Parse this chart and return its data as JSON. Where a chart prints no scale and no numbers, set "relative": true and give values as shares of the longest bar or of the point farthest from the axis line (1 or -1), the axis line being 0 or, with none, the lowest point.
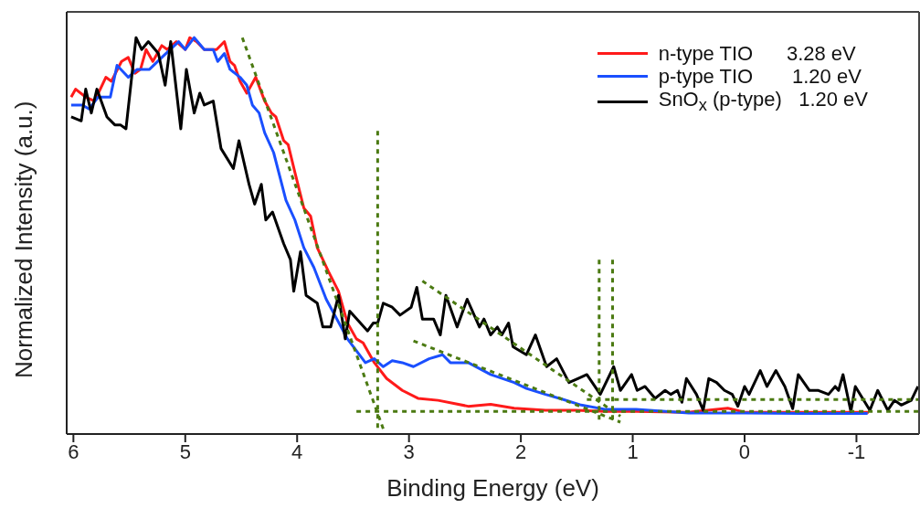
{
  "chart_data": {
    "type": "line",
    "xlabel": "Binding Energy (eV)",
    "ylabel": "Normalized Intensity (a.u.)",
    "relative": true,
    "xlim": [
      6.06,
      -1.56
    ],
    "xticks": [
      6,
      5,
      4,
      3,
      2,
      1,
      0,
      -1
    ],
    "legend": "top right",
    "marker": "none",
    "line_style": "solid",
    "series": [
      {
        "name": "n-type TIO      3.28 eV",
        "color": "#ff1a1a",
        "x": [
          6.02,
          5.98,
          5.89,
          5.81,
          5.71,
          5.66,
          5.57,
          5.51,
          5.45,
          5.4,
          5.35,
          5.29,
          5.21,
          5.16,
          5.08,
          5.0,
          4.96,
          4.9,
          4.83,
          4.72,
          4.65,
          4.6,
          4.56,
          4.51,
          4.45,
          4.37,
          4.29,
          4.23,
          4.19,
          4.12,
          4.08,
          4.02,
          3.94,
          3.88,
          3.82,
          3.72,
          3.63,
          3.55,
          3.47,
          3.41,
          3.31,
          3.2,
          3.06,
          2.92,
          2.74,
          2.47,
          2.27,
          2.06,
          1.78,
          1.51,
          1.24,
          0.97,
          0.5,
          0.15,
          0,
          -0.5,
          -1.11
        ],
        "values": [
          0.85,
          0.87,
          0.85,
          0.84,
          0.9,
          0.89,
          0.94,
          0.95,
          0.91,
          0.92,
          0.97,
          0.94,
          0.98,
          0.97,
          0.99,
          0.97,
          1.0,
          0.99,
          0.97,
          0.97,
          0.99,
          0.94,
          0.93,
          0.89,
          0.86,
          0.9,
          0.84,
          0.81,
          0.8,
          0.74,
          0.73,
          0.66,
          0.57,
          0.55,
          0.47,
          0.41,
          0.36,
          0.28,
          0.24,
          0.23,
          0.18,
          0.14,
          0.11,
          0.09,
          0.085,
          0.07,
          0.075,
          0.065,
          0.06,
          0.06,
          0.057,
          0.057,
          0.055,
          0.065,
          0.055,
          0.055,
          0.055
        ]
      },
      {
        "name": "p-type TIO       1.20 eV",
        "color": "#1a4fff",
        "x": [
          6.02,
          5.92,
          5.86,
          5.78,
          5.67,
          5.61,
          5.51,
          5.43,
          5.32,
          5.21,
          5.06,
          5.0,
          4.92,
          4.83,
          4.75,
          4.71,
          4.65,
          4.6,
          4.51,
          4.45,
          4.4,
          4.34,
          4.29,
          4.21,
          4.1,
          4.02,
          3.94,
          3.85,
          3.74,
          3.55,
          3.39,
          3.31,
          3.23,
          3.15,
          3.06,
          2.96,
          2.82,
          2.7,
          2.63,
          2.47,
          2.27,
          2.06,
          1.95,
          1.78,
          1.62,
          1.46,
          1.24,
          0.97,
          0.5,
          0,
          -0.5,
          -1.1
        ],
        "values": [
          0.83,
          0.83,
          0.82,
          0.85,
          0.85,
          0.93,
          0.9,
          0.92,
          0.92,
          0.95,
          0.99,
          0.97,
          1.0,
          0.97,
          0.97,
          0.94,
          0.96,
          0.92,
          0.9,
          0.88,
          0.83,
          0.81,
          0.76,
          0.71,
          0.59,
          0.54,
          0.47,
          0.42,
          0.34,
          0.24,
          0.18,
          0.19,
          0.17,
          0.185,
          0.18,
          0.17,
          0.19,
          0.2,
          0.18,
          0.18,
          0.15,
          0.13,
          0.115,
          0.1,
          0.087,
          0.073,
          0.062,
          0.062,
          0.053,
          0.053,
          0.052,
          0.052
        ]
      },
      {
        "name": "SnO$_{x}$ (p-type)   1.20 eV",
        "color": "#000000",
        "x": [
          6.02,
          5.93,
          5.89,
          5.84,
          5.79,
          5.7,
          5.63,
          5.58,
          5.53,
          5.44,
          5.39,
          5.33,
          5.24,
          5.18,
          5.13,
          5.04,
          4.99,
          4.92,
          4.87,
          4.83,
          4.75,
          4.68,
          4.57,
          4.52,
          4.43,
          4.38,
          4.32,
          4.28,
          4.22,
          4.12,
          4.06,
          4.03,
          3.97,
          3.92,
          3.82,
          3.77,
          3.7,
          3.63,
          3.57,
          3.53,
          3.37,
          3.32,
          3.28,
          3.23,
          3.15,
          3.08,
          2.98,
          2.93,
          2.88,
          2.78,
          2.72,
          2.67,
          2.57,
          2.48,
          2.37,
          2.33,
          2.27,
          2.21,
          2.17,
          2.11,
          2.07,
          1.95,
          1.87,
          1.77,
          1.68,
          1.57,
          1.49,
          1.41,
          1.29,
          1.17,
          1.11,
          1.01,
          0.96,
          0.89,
          0.8,
          0.71,
          0.66,
          0.6,
          0.56,
          0.52,
          0.43,
          0.37,
          0.32,
          0.25,
          0.18,
          0.11,
          0.06,
          0.0,
          -0.04,
          -0.14,
          -0.2,
          -0.28,
          -0.36,
          -0.43,
          -0.48,
          -0.58,
          -0.66,
          -0.75,
          -0.81,
          -0.84,
          -0.88,
          -0.95,
          -0.99,
          -1.12,
          -1.19,
          -1.28,
          -1.34,
          -1.4,
          -1.49,
          -1.55
        ],
        "values": [
          0.8,
          0.79,
          0.87,
          0.81,
          0.87,
          0.8,
          0.78,
          0.78,
          0.77,
          1.0,
          0.97,
          0.99,
          0.96,
          0.88,
          0.99,
          0.77,
          0.92,
          0.81,
          0.86,
          0.83,
          0.84,
          0.72,
          0.67,
          0.74,
          0.63,
          0.58,
          0.63,
          0.54,
          0.56,
          0.48,
          0.44,
          0.36,
          0.46,
          0.35,
          0.33,
          0.27,
          0.27,
          0.35,
          0.24,
          0.31,
          0.26,
          0.28,
          0.28,
          0.33,
          0.32,
          0.3,
          0.32,
          0.37,
          0.29,
          0.29,
          0.25,
          0.35,
          0.27,
          0.34,
          0.27,
          0.29,
          0.25,
          0.27,
          0.25,
          0.28,
          0.22,
          0.2,
          0.25,
          0.17,
          0.19,
          0.13,
          0.14,
          0.15,
          0.1,
          0.17,
          0.11,
          0.15,
          0.11,
          0.12,
          0.09,
          0.11,
          0.1,
          0.11,
          0.08,
          0.14,
          0.1,
          0.06,
          0.14,
          0.13,
          0.11,
          0.1,
          0.07,
          0.12,
          0.1,
          0.16,
          0.12,
          0.16,
          0.12,
          0.064,
          0.15,
          0.11,
          0.11,
          0.1,
          0.12,
          0.11,
          0.15,
          0.057,
          0.12,
          0.06,
          0.11,
          0.06,
          0.085,
          0.073,
          0.085,
          0.12
        ]
      },
      {
        "color": "#4b7a12",
        "line_style": "dashed",
        "x": [
          4.49,
          3.22
        ],
        "values": [
          1.0,
          0.005
        ]
      },
      {
        "color": "#4b7a12",
        "line_style": "dashed",
        "x": [
          3.47,
          -1.56
        ],
        "values": [
          0.057,
          0.057
        ]
      },
      {
        "color": "#4b7a12",
        "line_style": "dashed",
        "x": [
          1.41,
          -1.56
        ],
        "values": [
          0.087,
          0.087
        ]
      },
      {
        "color": "#4b7a12",
        "line_style": "dashed",
        "x": [
          2.96,
          1.11
        ],
        "values": [
          0.235,
          0.03
        ]
      },
      {
        "color": "#4b7a12",
        "line_style": "dashed",
        "x": [
          2.88,
          1.11
        ],
        "values": [
          0.386,
          0.045
        ]
      },
      {
        "color": "#4b7a12",
        "line_style": "dashed",
        "x": [
          3.28,
          3.28
        ],
        "values": [
          0.765,
          0.005
        ]
      },
      {
        "color": "#4b7a12",
        "line_style": "dashed",
        "x": [
          1.3,
          1.3
        ],
        "values": [
          0.44,
          0.03
        ]
      },
      {
        "color": "#4b7a12",
        "line_style": "dashed",
        "x": [
          1.18,
          1.18
        ],
        "values": [
          0.44,
          0.03
        ]
      }
    ]
  }
}
